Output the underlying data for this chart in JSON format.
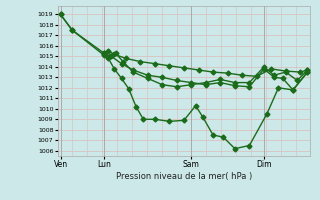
{
  "title": "Pression niveau de la mer( hPa )",
  "bg_color": "#cce8e8",
  "grid_color_h": "#ddbbbb",
  "grid_color_v": "#ddbbbb",
  "line_color": "#1a6b1a",
  "marker_color": "#1a6b1a",
  "ylim": [
    1005.5,
    1019.8
  ],
  "yticks": [
    1006,
    1007,
    1008,
    1009,
    1010,
    1011,
    1012,
    1013,
    1014,
    1015,
    1016,
    1017,
    1018,
    1019
  ],
  "xtick_labels": [
    "Ven",
    "Lun",
    "Sam",
    "Dim"
  ],
  "xtick_positions": [
    0,
    3,
    9,
    14
  ],
  "xlim": [
    -0.2,
    17.2
  ],
  "series": [
    {
      "x": [
        0,
        0.8,
        3.0,
        3.3,
        3.7,
        4.2,
        4.7,
        5.2,
        5.7,
        6.5,
        7.5,
        8.5,
        9.3,
        9.8,
        10.5,
        11.2,
        12.0,
        13.0,
        14.2,
        15.0,
        16.0,
        17.0
      ],
      "y": [
        1019,
        1017.5,
        1015.1,
        1014.8,
        1013.8,
        1012.9,
        1011.9,
        1010.2,
        1009.0,
        1009.0,
        1008.8,
        1008.9,
        1010.3,
        1009.2,
        1007.5,
        1007.3,
        1006.2,
        1006.5,
        1009.5,
        1012.0,
        1011.8,
        1013.5
      ],
      "marker": "D",
      "ms": 2.5,
      "lw": 1.0
    },
    {
      "x": [
        3.0,
        3.3,
        3.7,
        4.5,
        5.5,
        6.5,
        7.5,
        8.5,
        9.5,
        10.5,
        11.5,
        12.5,
        13.5,
        14.5,
        15.5,
        16.5,
        17.0
      ],
      "y": [
        1015.3,
        1015.5,
        1015.2,
        1014.8,
        1014.5,
        1014.3,
        1014.1,
        1013.9,
        1013.7,
        1013.5,
        1013.4,
        1013.2,
        1013.1,
        1013.8,
        1013.6,
        1013.5,
        1013.7
      ],
      "marker": "D",
      "ms": 2.5,
      "lw": 1.0
    },
    {
      "x": [
        3.0,
        3.5,
        4.2,
        5.0,
        6.0,
        7.0,
        8.0,
        9.0,
        10.0,
        11.0,
        12.0,
        13.0,
        14.0,
        14.7,
        15.3,
        16.0,
        17.0
      ],
      "y": [
        1015.2,
        1015.0,
        1014.3,
        1013.7,
        1013.2,
        1013.0,
        1012.7,
        1012.5,
        1012.3,
        1012.5,
        1012.2,
        1012.1,
        1013.8,
        1013.0,
        1012.9,
        1011.8,
        1013.5
      ],
      "marker": "D",
      "ms": 2.5,
      "lw": 1.0
    },
    {
      "x": [
        0,
        0.8,
        3.0,
        3.4,
        3.8,
        4.3,
        5.0,
        6.0,
        7.0,
        8.0,
        9.0,
        10.0,
        11.0,
        12.0,
        13.0,
        14.0,
        14.7,
        15.5,
        16.3,
        17.0
      ],
      "y": [
        1019,
        1017.5,
        1015.3,
        1015.0,
        1015.3,
        1014.5,
        1013.5,
        1012.9,
        1012.3,
        1012.1,
        1012.3,
        1012.5,
        1012.8,
        1012.5,
        1012.5,
        1014.0,
        1013.2,
        1013.5,
        1012.7,
        1013.7
      ],
      "marker": "D",
      "ms": 2.5,
      "lw": 1.0
    }
  ]
}
